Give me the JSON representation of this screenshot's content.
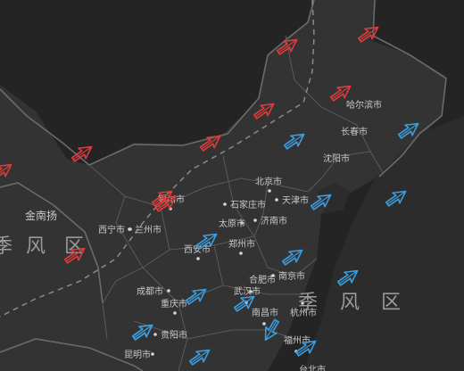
{
  "cities": [
    {
      "id": "haerbin",
      "name": "哈尔滨市",
      "marker": false
    },
    {
      "id": "changchun",
      "name": "长春市",
      "marker": false
    },
    {
      "id": "shenyang",
      "name": "沈阳市",
      "marker": false
    },
    {
      "id": "beijing",
      "name": "北京市",
      "marker": true
    },
    {
      "id": "tianjin",
      "name": "天津市",
      "marker": true
    },
    {
      "id": "shijiazhuang",
      "name": "石家庄市",
      "marker": true
    },
    {
      "id": "taiyuan",
      "name": "太原市",
      "marker": true
    },
    {
      "id": "jinan",
      "name": "济南市",
      "marker": true
    },
    {
      "id": "yinchuan",
      "name": "银川市",
      "marker": true
    },
    {
      "id": "xining",
      "name": "西宁市",
      "marker": true
    },
    {
      "id": "lanzhou",
      "name": "兰州市",
      "marker": true
    },
    {
      "id": "zhengzhou",
      "name": "郑州市",
      "marker": true
    },
    {
      "id": "xian",
      "name": "西安市",
      "marker": true
    },
    {
      "id": "hefei",
      "name": "合肥市",
      "marker": true
    },
    {
      "id": "nanjing",
      "name": "南京市",
      "marker": true
    },
    {
      "id": "chengdu",
      "name": "成都市",
      "marker": true
    },
    {
      "id": "wuhan",
      "name": "武汉市",
      "marker": true
    },
    {
      "id": "chongqing",
      "name": "重庆市",
      "marker": true
    },
    {
      "id": "nanchang",
      "name": "南昌市",
      "marker": true
    },
    {
      "id": "hangzhou",
      "name": "杭州市",
      "marker": true
    },
    {
      "id": "guiyang",
      "name": "贵阳市",
      "marker": true
    },
    {
      "id": "fuzhou",
      "name": "福州市",
      "marker": true
    },
    {
      "id": "kunming",
      "name": "昆明市",
      "marker": true
    },
    {
      "id": "taibei",
      "name": "台北市",
      "marker": false
    }
  ],
  "regions": [
    {
      "id": "jinnanyang",
      "name": "金南扬"
    }
  ],
  "zone_labels": {
    "west": [
      "季",
      "风",
      "区"
    ],
    "east": [
      "季",
      "风",
      "区"
    ]
  },
  "colors": {
    "background": "#242424",
    "land": "#333333",
    "border": "#6b6b6b",
    "city_text": "#c8c8c8",
    "zone_text": "#9a9a9a",
    "winter_arrow": "#e03a3a",
    "summer_arrow": "#3a9ee0"
  },
  "arrows": {
    "winter_count": 10,
    "summer_count": 14,
    "winter_icon": "arrow-outline-red",
    "summer_icon": "arrow-outline-blue"
  }
}
